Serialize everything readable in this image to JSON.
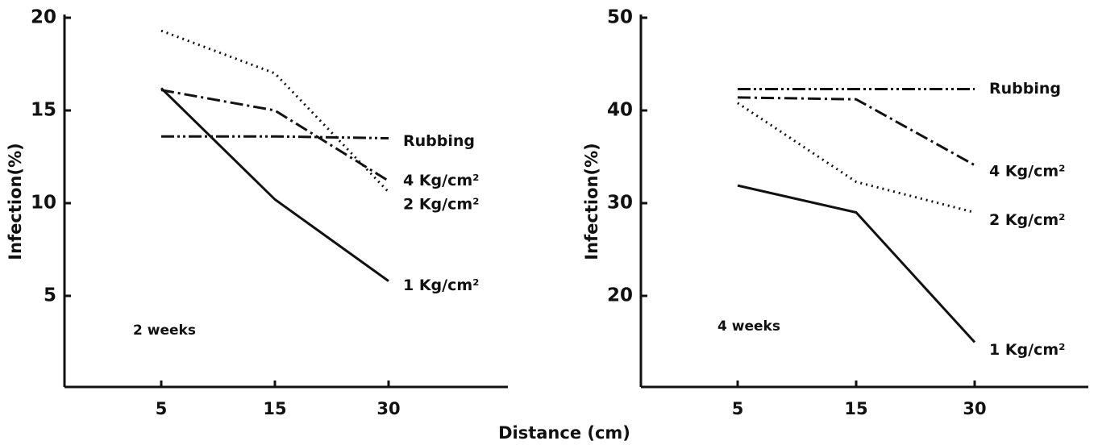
{
  "xlabel": "Distance (cm)",
  "chart_data": [
    {
      "type": "line",
      "ylabel": "Infection(%)",
      "annotation": "2 weeks",
      "categories": [
        "5",
        "15",
        "30"
      ],
      "ylim": [
        0,
        20
      ],
      "yticks": [
        5,
        10,
        15,
        20
      ],
      "series": [
        {
          "name": "Rubbing",
          "color": "#111111",
          "line_style": "dashdotdot",
          "values": [
            13.6,
            13.6,
            13.5
          ]
        },
        {
          "name": "4 Kg/cm²",
          "color": "#111111",
          "line_style": "dashdot",
          "values": [
            16.1,
            15.0,
            11.2
          ]
        },
        {
          "name": "2 Kg/cm²",
          "color": "#111111",
          "line_style": "dotted",
          "values": [
            19.3,
            17.0,
            10.6
          ]
        },
        {
          "name": "1 Kg/cm²",
          "color": "#111111",
          "line_style": "solid",
          "values": [
            16.2,
            10.2,
            5.8
          ]
        }
      ]
    },
    {
      "type": "line",
      "ylabel": "Infection(%)",
      "annotation": "4 weeks",
      "categories": [
        "5",
        "15",
        "30"
      ],
      "ylim": [
        10,
        50
      ],
      "yticks": [
        20,
        30,
        40,
        50
      ],
      "series": [
        {
          "name": "Rubbing",
          "color": "#111111",
          "line_style": "dashdotdot",
          "values": [
            42.3,
            42.3,
            42.3
          ]
        },
        {
          "name": "4 Kg/cm²",
          "color": "#111111",
          "line_style": "dashdot",
          "values": [
            41.4,
            41.2,
            34.1
          ]
        },
        {
          "name": "2 Kg/cm²",
          "color": "#111111",
          "line_style": "dotted",
          "values": [
            40.8,
            32.3,
            29.0
          ]
        },
        {
          "name": "1 Kg/cm²",
          "color": "#111111",
          "line_style": "solid",
          "values": [
            31.9,
            29.0,
            15.0
          ]
        }
      ]
    }
  ]
}
